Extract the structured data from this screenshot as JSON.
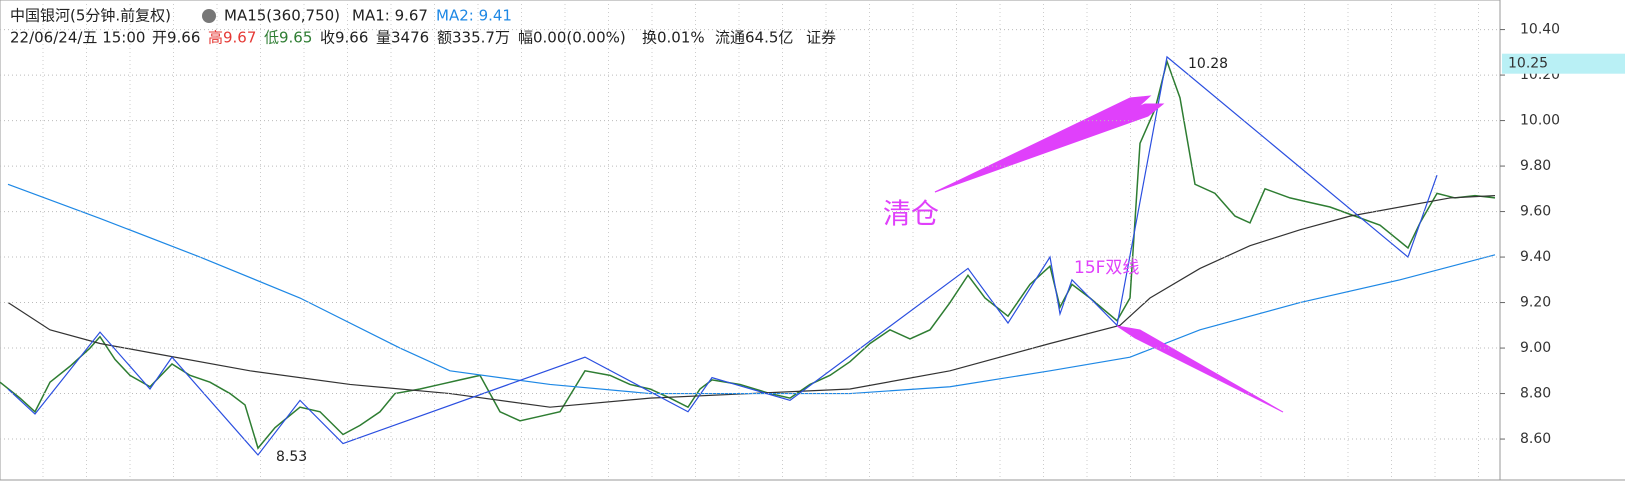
{
  "header": {
    "name": "中国银河(5分钟.前复权)",
    "ma": "MA15(360,750)",
    "ma1": "MA1: 9.67",
    "ma2": "MA2: 9.41",
    "datetime": "22/06/24/五 15:00",
    "open": "开9.66",
    "high": "高9.67",
    "low": "低9.65",
    "close": "收9.66",
    "volume": "量3476",
    "amount": "额335.7万",
    "change": "幅0.00(0.00%)",
    "turnover": "换0.01%",
    "float": "流通64.5亿",
    "sector": "证券"
  },
  "annotations": {
    "high_label": "10.28",
    "low_label": "8.53",
    "sell": "清仓",
    "signal": "15F双线"
  },
  "chart_data": {
    "type": "line",
    "xlim": [
      0,
      1500
    ],
    "ylim": [
      8.42,
      10.53
    ],
    "yticks": [
      {
        "value": 8.6,
        "label": "8.60"
      },
      {
        "value": 8.8,
        "label": "8.80"
      },
      {
        "value": 9.0,
        "label": "9.00"
      },
      {
        "value": 9.2,
        "label": "9.20"
      },
      {
        "value": 9.4,
        "label": "9.40"
      },
      {
        "value": 9.6,
        "label": "9.60"
      },
      {
        "value": 9.8,
        "label": "9.80"
      },
      {
        "value": 10.0,
        "label": "10.00"
      },
      {
        "value": 10.2,
        "label": "10.20"
      },
      {
        "value": 10.4,
        "label": "10.40"
      }
    ],
    "grid": true,
    "current_price": 10.25,
    "series": [
      {
        "color": "#2e7d32",
        "x": [
          0,
          20,
          35,
          50,
          70,
          90,
          100,
          115,
          130,
          150,
          172,
          190,
          210,
          230,
          245,
          258,
          275,
          300,
          320,
          343,
          360,
          380,
          395,
          420,
          440,
          460,
          480,
          500,
          520,
          540,
          560,
          585,
          610,
          630,
          650,
          670,
          688,
          700,
          712,
          740,
          770,
          790,
          810,
          830,
          850,
          870,
          890,
          910,
          930,
          950,
          968,
          985,
          1008,
          1030,
          1050,
          1060,
          1072,
          1090,
          1117,
          1130,
          1140,
          1155,
          1167,
          1180,
          1195,
          1215,
          1235,
          1250,
          1265,
          1290,
          1310,
          1330,
          1355,
          1380,
          1408,
          1420,
          1437,
          1455,
          1475,
          1495
        ],
        "values": [
          8.85,
          8.78,
          8.72,
          8.85,
          8.92,
          9.0,
          9.05,
          8.95,
          8.88,
          8.83,
          8.93,
          8.88,
          8.85,
          8.8,
          8.75,
          8.56,
          8.65,
          8.74,
          8.72,
          8.62,
          8.66,
          8.72,
          8.8,
          8.82,
          8.84,
          8.86,
          8.88,
          8.72,
          8.68,
          8.7,
          8.72,
          8.9,
          8.88,
          8.84,
          8.82,
          8.78,
          8.74,
          8.82,
          8.86,
          8.84,
          8.8,
          8.78,
          8.84,
          8.88,
          8.94,
          9.02,
          9.08,
          9.04,
          9.08,
          9.2,
          9.32,
          9.22,
          9.14,
          9.28,
          9.36,
          9.18,
          9.28,
          9.22,
          9.12,
          9.22,
          9.9,
          10.05,
          10.26,
          10.1,
          9.72,
          9.68,
          9.58,
          9.55,
          9.7,
          9.66,
          9.64,
          9.62,
          9.58,
          9.54,
          9.44,
          9.55,
          9.68,
          9.66,
          9.67,
          9.66
        ]
      },
      {
        "color": "#333333",
        "x": [
          8,
          50,
          100,
          150,
          250,
          350,
          450,
          550,
          650,
          750,
          850,
          950,
          1050,
          1120,
          1150,
          1200,
          1250,
          1300,
          1350,
          1400,
          1450,
          1495
        ],
        "values": [
          9.2,
          9.08,
          9.02,
          8.98,
          8.9,
          8.84,
          8.8,
          8.74,
          8.78,
          8.8,
          8.82,
          8.9,
          9.02,
          9.1,
          9.22,
          9.35,
          9.45,
          9.52,
          9.58,
          9.62,
          9.66,
          9.67
        ]
      },
      {
        "color": "#1e88e5",
        "x": [
          8,
          100,
          200,
          300,
          400,
          450,
          550,
          650,
          750,
          850,
          950,
          1050,
          1130,
          1200,
          1300,
          1400,
          1495
        ],
        "values": [
          9.72,
          9.57,
          9.4,
          9.22,
          9.0,
          8.9,
          8.84,
          8.8,
          8.8,
          8.8,
          8.83,
          8.9,
          8.96,
          9.08,
          9.2,
          9.3,
          9.41
        ]
      },
      {
        "color": "#2b4fe0",
        "x": [
          8,
          35,
          100,
          150,
          172,
          258,
          300,
          343,
          585,
          688,
          712,
          790,
          968,
          1008,
          1050,
          1060,
          1072,
          1117,
          1167,
          1408,
          1437
        ],
        "values": [
          8.82,
          8.71,
          9.07,
          8.82,
          8.96,
          8.53,
          8.77,
          8.58,
          8.96,
          8.72,
          8.87,
          8.77,
          9.35,
          9.11,
          9.4,
          9.15,
          9.3,
          9.1,
          10.28,
          9.4,
          9.76
        ]
      }
    ]
  }
}
